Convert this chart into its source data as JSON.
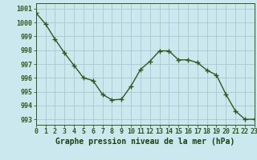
{
  "x": [
    0,
    1,
    2,
    3,
    4,
    5,
    6,
    7,
    8,
    9,
    10,
    11,
    12,
    13,
    14,
    15,
    16,
    17,
    18,
    19,
    20,
    21,
    22,
    23
  ],
  "y": [
    1000.7,
    999.9,
    998.8,
    997.8,
    996.9,
    996.0,
    995.8,
    994.8,
    994.4,
    994.45,
    995.4,
    996.6,
    997.2,
    997.95,
    997.95,
    997.3,
    997.3,
    997.1,
    996.55,
    996.2,
    994.8,
    993.6,
    993.0,
    993.0
  ],
  "line_color": "#2d5a1b",
  "marker_color": "#2d5a1b",
  "bg_color": "#cce8ef",
  "grid_color": "#a8c8d0",
  "xlabel": "Graphe pression niveau de la mer (hPa)",
  "ylabel_ticks": [
    993,
    994,
    995,
    996,
    997,
    998,
    999,
    1000,
    1001
  ],
  "xlim": [
    0,
    23
  ],
  "ylim": [
    992.6,
    1001.4
  ],
  "xlabel_color": "#1a4010",
  "tick_color": "#2d5a1b",
  "tick_fontsize": 6.0,
  "xlabel_fontsize": 7.0
}
